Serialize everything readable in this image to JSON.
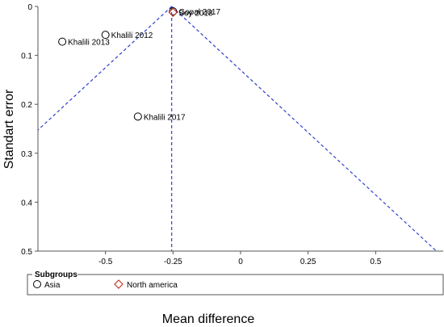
{
  "chart_data": {
    "type": "scatter",
    "title": "",
    "xlabel": "Mean difference",
    "ylabel": "Standart error",
    "xlim": [
      -0.75,
      0.75
    ],
    "ylim": [
      0,
      0.5
    ],
    "y_inverted": true,
    "x_ticks": [
      "-0.5",
      "-0.25",
      "0",
      "0.25",
      "0.5"
    ],
    "x_tick_values": [
      -0.5,
      -0.25,
      0,
      0.25,
      0.5
    ],
    "y_ticks": [
      "0",
      "0.1",
      "0.2",
      "0.3",
      "0.4",
      "0.5"
    ],
    "y_tick_values": [
      0,
      0.1,
      0.2,
      0.3,
      0.4,
      0.5
    ],
    "pooled_estimate": -0.255,
    "funnel": "95% pseudo-confidence limits",
    "series": [
      {
        "name": "Asia",
        "marker": "circle",
        "color": "#000000",
        "points": [
          {
            "label": "Khalili 2013",
            "x": -0.66,
            "y": 0.072
          },
          {
            "label": "Khalili 2012",
            "x": -0.5,
            "y": 0.058
          },
          {
            "label": "Khalili 2017",
            "x": -0.38,
            "y": 0.225
          },
          {
            "label": "Gopal 2017",
            "x": -0.25,
            "y": 0.01
          }
        ]
      },
      {
        "name": "North america",
        "marker": "diamond",
        "color": "#c0392b",
        "points": [
          {
            "label": "Soy 2018",
            "x": -0.25,
            "y": 0.012
          }
        ]
      }
    ],
    "legend": {
      "title": "Subgroups",
      "placement": "bottom"
    }
  },
  "colors": {
    "funnel_line": "#3344cc",
    "diamond": "#c0392b",
    "axis": "#555555"
  }
}
